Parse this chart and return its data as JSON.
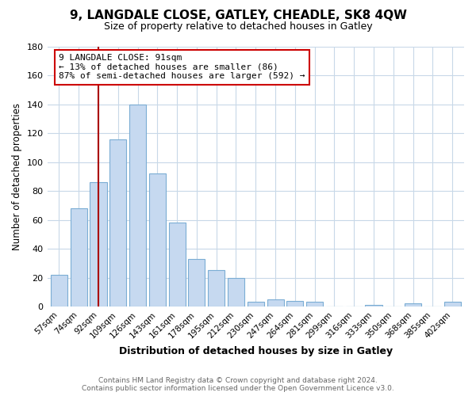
{
  "title": "9, LANGDALE CLOSE, GATLEY, CHEADLE, SK8 4QW",
  "subtitle": "Size of property relative to detached houses in Gatley",
  "xlabel": "Distribution of detached houses by size in Gatley",
  "ylabel": "Number of detached properties",
  "bar_labels": [
    "57sqm",
    "74sqm",
    "92sqm",
    "109sqm",
    "126sqm",
    "143sqm",
    "161sqm",
    "178sqm",
    "195sqm",
    "212sqm",
    "230sqm",
    "247sqm",
    "264sqm",
    "281sqm",
    "299sqm",
    "316sqm",
    "333sqm",
    "350sqm",
    "368sqm",
    "385sqm",
    "402sqm"
  ],
  "bar_values": [
    22,
    68,
    86,
    116,
    140,
    92,
    58,
    33,
    25,
    20,
    3,
    5,
    4,
    3,
    0,
    0,
    1,
    0,
    2,
    0,
    3
  ],
  "bar_color": "#c6d9f0",
  "bar_edge_color": "#7badd4",
  "highlight_index": 2,
  "highlight_line_color": "#aa0000",
  "annotation_line1": "9 LANGDALE CLOSE: 91sqm",
  "annotation_line2": "← 13% of detached houses are smaller (86)",
  "annotation_line3": "87% of semi-detached houses are larger (592) →",
  "annotation_box_edge": "#cc0000",
  "ylim": [
    0,
    180
  ],
  "yticks": [
    0,
    20,
    40,
    60,
    80,
    100,
    120,
    140,
    160,
    180
  ],
  "footer_line1": "Contains HM Land Registry data © Crown copyright and database right 2024.",
  "footer_line2": "Contains public sector information licensed under the Open Government Licence v3.0.",
  "background_color": "#ffffff",
  "grid_color": "#c8d8e8"
}
